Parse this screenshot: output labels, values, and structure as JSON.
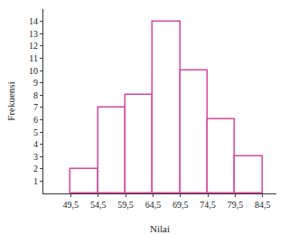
{
  "chart_data": {
    "type": "histogram",
    "x_label": "Nilai",
    "y_label": "Frekuensi",
    "bins": [
      49.5,
      54.5,
      59.5,
      64.5,
      69.5,
      74.5,
      79.5,
      84.5
    ],
    "values": [
      2,
      7,
      8,
      14,
      10,
      6,
      3
    ],
    "color": "#d6479e",
    "xlim": [
      44.5,
      87
    ],
    "ylim": [
      0,
      15
    ],
    "xticks": [
      {
        "value": 49.5,
        "label": "49,5"
      },
      {
        "value": 54.5,
        "label": "54,5"
      },
      {
        "value": 59.5,
        "label": "59,5"
      },
      {
        "value": 64.5,
        "label": "64,5"
      },
      {
        "value": 69.5,
        "label": "69,5"
      },
      {
        "value": 74.5,
        "label": "74,5"
      },
      {
        "value": 79.5,
        "label": "79,5"
      },
      {
        "value": 84.5,
        "label": "84,5"
      }
    ],
    "yticks": [
      1,
      2,
      3,
      4,
      5,
      6,
      7,
      8,
      9,
      10,
      11,
      12,
      13,
      14
    ],
    "grid": false
  }
}
